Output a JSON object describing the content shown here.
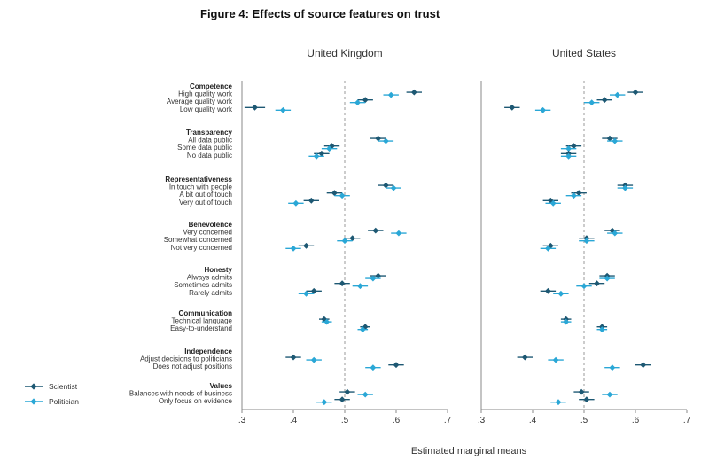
{
  "title": "Figure 4: Effects of source features on trust",
  "colors": {
    "Scientist": "#1d5873",
    "Politician": "#2aa7d6",
    "reference_line": "#9a9a9a",
    "frame": "#888888"
  },
  "chart_data": {
    "type": "scatter",
    "subtype": "coefficient-plot with horizontal confidence intervals",
    "title": "Figure 4: Effects of source features on trust",
    "xlabel": "Estimated marginal means",
    "xlim": [
      0.3,
      0.7
    ],
    "xticks": [
      ".3",
      ".4",
      ".5",
      ".6",
      ".7"
    ],
    "reference_line": 0.5,
    "grid": false,
    "legend": {
      "placement": "bottom-left",
      "entries": [
        "Scientist",
        "Politician"
      ]
    },
    "panels": [
      "United Kingdom",
      "United States"
    ],
    "series": [
      {
        "name": "Scientist",
        "marker": "diamond"
      },
      {
        "name": "Politician",
        "marker": "diamond"
      }
    ],
    "groups": [
      {
        "name": "Competence",
        "levels": [
          {
            "label": "High quality work",
            "UK": {
              "Scientist": [
                0.635,
                0.62,
                0.65
              ],
              "Politician": [
                0.59,
                0.575,
                0.605
              ]
            },
            "US": {
              "Scientist": [
                0.6,
                0.585,
                0.615
              ],
              "Politician": [
                0.565,
                0.55,
                0.58
              ]
            }
          },
          {
            "label": "Average quality work",
            "UK": {
              "Scientist": [
                0.54,
                0.525,
                0.555
              ],
              "Politician": [
                0.525,
                0.51,
                0.54
              ]
            },
            "US": {
              "Scientist": [
                0.54,
                0.525,
                0.555
              ],
              "Politician": [
                0.515,
                0.5,
                0.53
              ]
            }
          },
          {
            "label": "Low quality work",
            "UK": {
              "Scientist": [
                0.325,
                0.305,
                0.345
              ],
              "Politician": [
                0.38,
                0.365,
                0.395
              ]
            },
            "US": {
              "Scientist": [
                0.36,
                0.345,
                0.375
              ],
              "Politician": [
                0.42,
                0.405,
                0.435
              ]
            }
          }
        ]
      },
      {
        "name": "Transparency",
        "levels": [
          {
            "label": "All data public",
            "UK": {
              "Scientist": [
                0.565,
                0.55,
                0.58
              ],
              "Politician": [
                0.58,
                0.565,
                0.595
              ]
            },
            "US": {
              "Scientist": [
                0.55,
                0.535,
                0.565
              ],
              "Politician": [
                0.56,
                0.545,
                0.575
              ]
            }
          },
          {
            "label": "Some data public",
            "UK": {
              "Scientist": [
                0.475,
                0.46,
                0.49
              ],
              "Politician": [
                0.47,
                0.455,
                0.485
              ]
            },
            "US": {
              "Scientist": [
                0.48,
                0.465,
                0.495
              ],
              "Politician": [
                0.47,
                0.455,
                0.485
              ]
            }
          },
          {
            "label": "No data public",
            "UK": {
              "Scientist": [
                0.455,
                0.44,
                0.47
              ],
              "Politician": [
                0.445,
                0.43,
                0.46
              ]
            },
            "US": {
              "Scientist": [
                0.47,
                0.455,
                0.485
              ],
              "Politician": [
                0.47,
                0.455,
                0.485
              ]
            }
          }
        ]
      },
      {
        "name": "Representativeness",
        "levels": [
          {
            "label": "In touch with people",
            "UK": {
              "Scientist": [
                0.58,
                0.565,
                0.595
              ],
              "Politician": [
                0.595,
                0.58,
                0.61
              ]
            },
            "US": {
              "Scientist": [
                0.58,
                0.565,
                0.595
              ],
              "Politician": [
                0.58,
                0.565,
                0.595
              ]
            }
          },
          {
            "label": "A bit out of touch",
            "UK": {
              "Scientist": [
                0.48,
                0.465,
                0.495
              ],
              "Politician": [
                0.495,
                0.48,
                0.51
              ]
            },
            "US": {
              "Scientist": [
                0.49,
                0.475,
                0.505
              ],
              "Politician": [
                0.48,
                0.465,
                0.495
              ]
            }
          },
          {
            "label": "Very out of touch",
            "UK": {
              "Scientist": [
                0.435,
                0.42,
                0.45
              ],
              "Politician": [
                0.405,
                0.39,
                0.42
              ]
            },
            "US": {
              "Scientist": [
                0.435,
                0.42,
                0.45
              ],
              "Politician": [
                0.44,
                0.425,
                0.455
              ]
            }
          }
        ]
      },
      {
        "name": "Benevolence",
        "levels": [
          {
            "label": "Very concerned",
            "UK": {
              "Scientist": [
                0.56,
                0.545,
                0.575
              ],
              "Politician": [
                0.605,
                0.59,
                0.62
              ]
            },
            "US": {
              "Scientist": [
                0.555,
                0.54,
                0.57
              ],
              "Politician": [
                0.56,
                0.545,
                0.575
              ]
            }
          },
          {
            "label": "Somewhat concerned",
            "UK": {
              "Scientist": [
                0.515,
                0.5,
                0.53
              ],
              "Politician": [
                0.5,
                0.485,
                0.515
              ]
            },
            "US": {
              "Scientist": [
                0.505,
                0.49,
                0.52
              ],
              "Politician": [
                0.505,
                0.49,
                0.52
              ]
            }
          },
          {
            "label": "Not very concerned",
            "UK": {
              "Scientist": [
                0.425,
                0.41,
                0.44
              ],
              "Politician": [
                0.4,
                0.385,
                0.415
              ]
            },
            "US": {
              "Scientist": [
                0.435,
                0.42,
                0.45
              ],
              "Politician": [
                0.43,
                0.415,
                0.445
              ]
            }
          }
        ]
      },
      {
        "name": "Honesty",
        "levels": [
          {
            "label": "Always admits",
            "UK": {
              "Scientist": [
                0.565,
                0.55,
                0.58
              ],
              "Politician": [
                0.555,
                0.54,
                0.57
              ]
            },
            "US": {
              "Scientist": [
                0.545,
                0.53,
                0.56
              ],
              "Politician": [
                0.545,
                0.53,
                0.56
              ]
            }
          },
          {
            "label": "Sometimes admits",
            "UK": {
              "Scientist": [
                0.495,
                0.48,
                0.51
              ],
              "Politician": [
                0.53,
                0.515,
                0.545
              ]
            },
            "US": {
              "Scientist": [
                0.525,
                0.51,
                0.54
              ],
              "Politician": [
                0.5,
                0.485,
                0.515
              ]
            }
          },
          {
            "label": "Rarely admits",
            "UK": {
              "Scientist": [
                0.44,
                0.425,
                0.455
              ],
              "Politician": [
                0.425,
                0.41,
                0.44
              ]
            },
            "US": {
              "Scientist": [
                0.43,
                0.415,
                0.445
              ],
              "Politician": [
                0.455,
                0.44,
                0.47
              ]
            }
          }
        ]
      },
      {
        "name": "Communication",
        "levels": [
          {
            "label": "Technical language",
            "UK": {
              "Scientist": [
                0.46,
                0.45,
                0.47
              ],
              "Politician": [
                0.465,
                0.455,
                0.475
              ]
            },
            "US": {
              "Scientist": [
                0.465,
                0.455,
                0.475
              ],
              "Politician": [
                0.465,
                0.455,
                0.475
              ]
            }
          },
          {
            "label": "Easy-to-understand",
            "UK": {
              "Scientist": [
                0.54,
                0.53,
                0.55
              ],
              "Politician": [
                0.535,
                0.525,
                0.545
              ]
            },
            "US": {
              "Scientist": [
                0.535,
                0.525,
                0.545
              ],
              "Politician": [
                0.535,
                0.525,
                0.545
              ]
            }
          }
        ]
      },
      {
        "name": "Independence",
        "levels": [
          {
            "label": "Adjust decisions to politicians",
            "UK": {
              "Scientist": [
                0.4,
                0.385,
                0.415
              ],
              "Politician": [
                0.44,
                0.425,
                0.455
              ]
            },
            "US": {
              "Scientist": [
                0.385,
                0.37,
                0.4
              ],
              "Politician": [
                0.445,
                0.43,
                0.46
              ]
            }
          },
          {
            "label": "Does not adjust positions",
            "UK": {
              "Scientist": [
                0.6,
                0.585,
                0.615
              ],
              "Politician": [
                0.555,
                0.54,
                0.57
              ]
            },
            "US": {
              "Scientist": [
                0.615,
                0.6,
                0.63
              ],
              "Politician": [
                0.555,
                0.54,
                0.57
              ]
            }
          }
        ]
      },
      {
        "name": "Values",
        "levels": [
          {
            "label": "Balances with needs of business",
            "UK": {
              "Scientist": [
                0.505,
                0.49,
                0.52
              ],
              "Politician": [
                0.54,
                0.525,
                0.555
              ]
            },
            "US": {
              "Scientist": [
                0.495,
                0.48,
                0.51
              ],
              "Politician": [
                0.55,
                0.535,
                0.565
              ]
            }
          },
          {
            "label": "Only focus on evidence",
            "UK": {
              "Scientist": [
                0.495,
                0.48,
                0.51
              ],
              "Politician": [
                0.46,
                0.445,
                0.475
              ]
            },
            "US": {
              "Scientist": [
                0.505,
                0.49,
                0.52
              ],
              "Politician": [
                0.45,
                0.435,
                0.465
              ]
            }
          }
        ]
      }
    ]
  }
}
